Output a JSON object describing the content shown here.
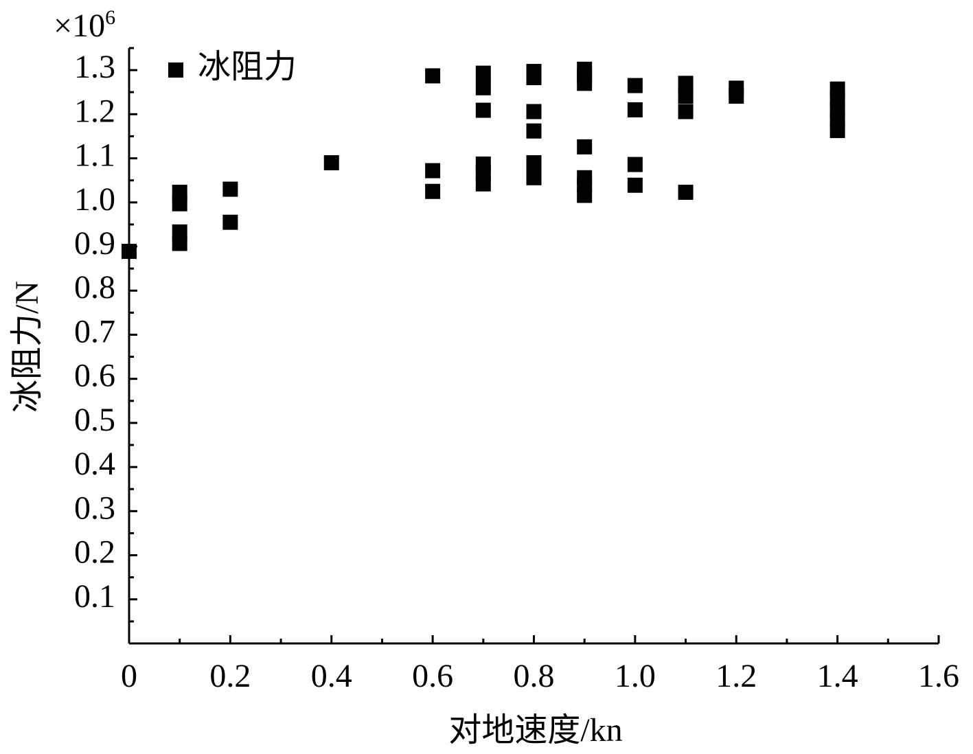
{
  "chart_data": {
    "type": "scatter",
    "x_label": "对地速度/kn",
    "y_label": "冰阻力/N",
    "y_multiplier": {
      "base": "×10",
      "exponent": "6"
    },
    "xlim": [
      0,
      1.6
    ],
    "xticks": [
      0,
      0.2,
      0.4,
      0.6,
      0.8,
      {
        "value": 1,
        "label": "1.0"
      },
      1.2,
      1.4,
      1.6
    ],
    "x_minor_ticks": [
      0.1,
      0.3,
      0.5,
      0.7,
      0.9,
      1.1,
      1.3,
      1.5
    ],
    "ylim": [
      0,
      1.35
    ],
    "yticks": [
      0.1,
      0.2,
      0.3,
      0.4,
      0.5,
      0.6,
      0.7,
      0.8,
      0.9,
      {
        "value": 1,
        "label": "1.0"
      },
      1.1,
      1.2,
      1.3
    ],
    "y_minor_ticks": [
      0.05,
      0.15,
      0.25,
      0.35,
      0.45,
      0.55,
      0.65,
      0.75,
      0.85,
      0.95,
      1.05,
      1.15,
      1.25,
      1.35
    ],
    "legend": "upper-left",
    "series": [
      {
        "name": "冰阻力",
        "color": "#000000",
        "marker": "square",
        "x": [
          0,
          0.1,
          0.1,
          0.1,
          0.1,
          0.2,
          0.2,
          0.4,
          0.6,
          0.6,
          0.6,
          0.7,
          0.7,
          0.7,
          0.7,
          0.7,
          0.7,
          0.8,
          0.8,
          0.8,
          0.8,
          0.8,
          0.8,
          0.9,
          0.9,
          0.9,
          0.9,
          0.9,
          0.9,
          0.9,
          1.0,
          1.0,
          1.0,
          1.0,
          1.1,
          1.1,
          1.1,
          1.1,
          1.2,
          1.2,
          1.4,
          1.4,
          1.4,
          1.4,
          1.4
        ],
        "values": [
          0.889,
          1.023,
          0.997,
          0.933,
          0.907,
          1.03,
          0.955,
          1.09,
          1.287,
          1.072,
          1.025,
          1.293,
          1.26,
          1.209,
          1.087,
          1.067,
          1.042,
          1.297,
          1.283,
          1.206,
          1.162,
          1.09,
          1.056,
          1.302,
          1.287,
          1.27,
          1.126,
          1.056,
          1.039,
          1.016,
          1.265,
          1.21,
          1.086,
          1.039,
          1.27,
          1.241,
          1.206,
          1.023,
          1.259,
          1.241,
          1.257,
          1.234,
          1.21,
          1.187,
          1.163
        ]
      }
    ]
  }
}
